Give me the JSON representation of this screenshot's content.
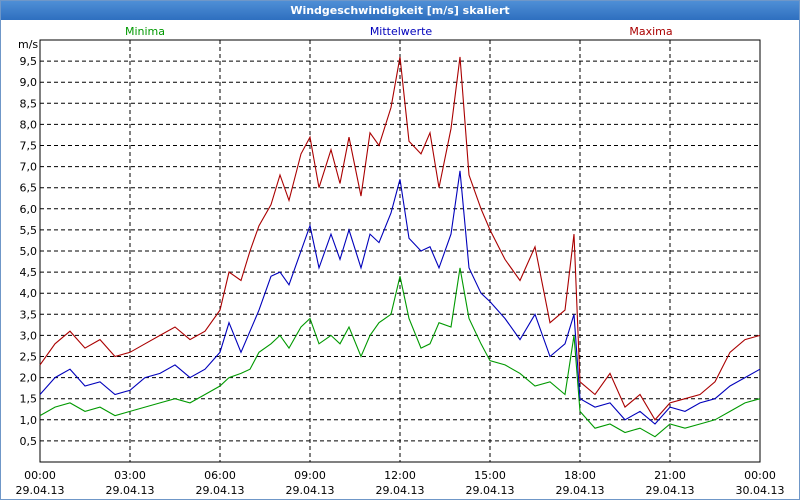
{
  "window": {
    "title": "Windgeschwindigkeit [m/s] skaliert"
  },
  "colors": {
    "minima": "#009900",
    "mittel": "#0000bb",
    "maxima": "#aa0000"
  },
  "chart_data": {
    "type": "line",
    "title": "Windgeschwindigkeit [m/s] skaliert",
    "ylabel": "m/s",
    "xlabel": "",
    "ylim": [
      0,
      10
    ],
    "xlim": [
      "29.04.13 00:00",
      "30.04.13 00:00"
    ],
    "grid": true,
    "legend": "top",
    "y_ticks": [
      "0,5",
      "1,0",
      "1,5",
      "2,0",
      "2,5",
      "3,0",
      "3,5",
      "4,0",
      "4,5",
      "5,0",
      "5,5",
      "6,0",
      "6,5",
      "7,0",
      "7,5",
      "8,0",
      "8,5",
      "9,0",
      "9,5"
    ],
    "y_tick_values": [
      0.5,
      1,
      1.5,
      2,
      2.5,
      3,
      3.5,
      4,
      4.5,
      5,
      5.5,
      6,
      6.5,
      7,
      7.5,
      8,
      8.5,
      9,
      9.5
    ],
    "x_ticks": [
      {
        "hour": 0,
        "time": "00:00",
        "date": "29.04.13"
      },
      {
        "hour": 3,
        "time": "03:00",
        "date": "29.04.13"
      },
      {
        "hour": 6,
        "time": "06:00",
        "date": "29.04.13"
      },
      {
        "hour": 9,
        "time": "09:00",
        "date": "29.04.13"
      },
      {
        "hour": 12,
        "time": "12:00",
        "date": "29.04.13"
      },
      {
        "hour": 15,
        "time": "15:00",
        "date": "29.04.13"
      },
      {
        "hour": 18,
        "time": "18:00",
        "date": "29.04.13"
      },
      {
        "hour": 21,
        "time": "21:00",
        "date": "29.04.13"
      },
      {
        "hour": 24,
        "time": "00:00",
        "date": "30.04.13"
      }
    ],
    "series": [
      {
        "name": "Minima",
        "color": "#009900",
        "points": [
          [
            0,
            1.1
          ],
          [
            0.5,
            1.3
          ],
          [
            1,
            1.4
          ],
          [
            1.5,
            1.2
          ],
          [
            2,
            1.3
          ],
          [
            2.5,
            1.1
          ],
          [
            3,
            1.2
          ],
          [
            3.5,
            1.3
          ],
          [
            4,
            1.4
          ],
          [
            4.5,
            1.5
          ],
          [
            5,
            1.4
          ],
          [
            5.5,
            1.6
          ],
          [
            6,
            1.8
          ],
          [
            6.3,
            2.0
          ],
          [
            6.7,
            2.1
          ],
          [
            7,
            2.2
          ],
          [
            7.3,
            2.6
          ],
          [
            7.7,
            2.8
          ],
          [
            8,
            3.0
          ],
          [
            8.3,
            2.7
          ],
          [
            8.7,
            3.2
          ],
          [
            9,
            3.4
          ],
          [
            9.3,
            2.8
          ],
          [
            9.7,
            3.0
          ],
          [
            10,
            2.8
          ],
          [
            10.3,
            3.2
          ],
          [
            10.7,
            2.5
          ],
          [
            11,
            3.0
          ],
          [
            11.3,
            3.3
          ],
          [
            11.7,
            3.5
          ],
          [
            12,
            4.4
          ],
          [
            12.3,
            3.4
          ],
          [
            12.7,
            2.7
          ],
          [
            13,
            2.8
          ],
          [
            13.3,
            3.3
          ],
          [
            13.7,
            3.2
          ],
          [
            14,
            4.6
          ],
          [
            14.3,
            3.4
          ],
          [
            14.7,
            2.8
          ],
          [
            15,
            2.4
          ],
          [
            15.5,
            2.3
          ],
          [
            16,
            2.1
          ],
          [
            16.5,
            1.8
          ],
          [
            17,
            1.9
          ],
          [
            17.5,
            1.6
          ],
          [
            17.8,
            3.0
          ],
          [
            18,
            1.2
          ],
          [
            18.5,
            0.8
          ],
          [
            19,
            0.9
          ],
          [
            19.5,
            0.7
          ],
          [
            20,
            0.8
          ],
          [
            20.5,
            0.6
          ],
          [
            21,
            0.9
          ],
          [
            21.5,
            0.8
          ],
          [
            22,
            0.9
          ],
          [
            22.5,
            1.0
          ],
          [
            23,
            1.2
          ],
          [
            23.5,
            1.4
          ],
          [
            24,
            1.5
          ]
        ]
      },
      {
        "name": "Mittelwerte",
        "color": "#0000bb",
        "points": [
          [
            0,
            1.6
          ],
          [
            0.5,
            2.0
          ],
          [
            1,
            2.2
          ],
          [
            1.5,
            1.8
          ],
          [
            2,
            1.9
          ],
          [
            2.5,
            1.6
          ],
          [
            3,
            1.7
          ],
          [
            3.5,
            2.0
          ],
          [
            4,
            2.1
          ],
          [
            4.5,
            2.3
          ],
          [
            5,
            2.0
          ],
          [
            5.5,
            2.2
          ],
          [
            6,
            2.6
          ],
          [
            6.3,
            3.3
          ],
          [
            6.7,
            2.6
          ],
          [
            7,
            3.1
          ],
          [
            7.3,
            3.6
          ],
          [
            7.7,
            4.4
          ],
          [
            8,
            4.5
          ],
          [
            8.3,
            4.2
          ],
          [
            8.7,
            5.0
          ],
          [
            9,
            5.6
          ],
          [
            9.3,
            4.6
          ],
          [
            9.7,
            5.4
          ],
          [
            10,
            4.8
          ],
          [
            10.3,
            5.5
          ],
          [
            10.7,
            4.6
          ],
          [
            11,
            5.4
          ],
          [
            11.3,
            5.2
          ],
          [
            11.7,
            5.9
          ],
          [
            12,
            6.7
          ],
          [
            12.3,
            5.3
          ],
          [
            12.7,
            5.0
          ],
          [
            13,
            5.1
          ],
          [
            13.3,
            4.6
          ],
          [
            13.7,
            5.4
          ],
          [
            14,
            6.9
          ],
          [
            14.3,
            4.6
          ],
          [
            14.7,
            4.0
          ],
          [
            15,
            3.8
          ],
          [
            15.5,
            3.4
          ],
          [
            16,
            2.9
          ],
          [
            16.5,
            3.5
          ],
          [
            17,
            2.5
          ],
          [
            17.5,
            2.8
          ],
          [
            17.8,
            3.5
          ],
          [
            18,
            1.5
          ],
          [
            18.5,
            1.3
          ],
          [
            19,
            1.4
          ],
          [
            19.5,
            1.0
          ],
          [
            20,
            1.2
          ],
          [
            20.5,
            0.9
          ],
          [
            21,
            1.3
          ],
          [
            21.5,
            1.2
          ],
          [
            22,
            1.4
          ],
          [
            22.5,
            1.5
          ],
          [
            23,
            1.8
          ],
          [
            23.5,
            2.0
          ],
          [
            24,
            2.2
          ]
        ]
      },
      {
        "name": "Maxima",
        "color": "#aa0000",
        "points": [
          [
            0,
            2.3
          ],
          [
            0.5,
            2.8
          ],
          [
            1,
            3.1
          ],
          [
            1.5,
            2.7
          ],
          [
            2,
            2.9
          ],
          [
            2.5,
            2.5
          ],
          [
            3,
            2.6
          ],
          [
            3.5,
            2.8
          ],
          [
            4,
            3.0
          ],
          [
            4.5,
            3.2
          ],
          [
            5,
            2.9
          ],
          [
            5.5,
            3.1
          ],
          [
            6,
            3.6
          ],
          [
            6.3,
            4.5
          ],
          [
            6.7,
            4.3
          ],
          [
            7,
            5.0
          ],
          [
            7.3,
            5.6
          ],
          [
            7.7,
            6.1
          ],
          [
            8,
            6.8
          ],
          [
            8.3,
            6.2
          ],
          [
            8.7,
            7.3
          ],
          [
            9,
            7.7
          ],
          [
            9.3,
            6.5
          ],
          [
            9.7,
            7.4
          ],
          [
            10,
            6.6
          ],
          [
            10.3,
            7.7
          ],
          [
            10.7,
            6.3
          ],
          [
            11,
            7.8
          ],
          [
            11.3,
            7.5
          ],
          [
            11.7,
            8.4
          ],
          [
            12,
            9.6
          ],
          [
            12.3,
            7.6
          ],
          [
            12.7,
            7.3
          ],
          [
            13,
            7.8
          ],
          [
            13.3,
            6.5
          ],
          [
            13.7,
            7.9
          ],
          [
            14,
            9.6
          ],
          [
            14.3,
            6.8
          ],
          [
            14.7,
            6.0
          ],
          [
            15,
            5.5
          ],
          [
            15.5,
            4.8
          ],
          [
            16,
            4.3
          ],
          [
            16.5,
            5.1
          ],
          [
            17,
            3.3
          ],
          [
            17.5,
            3.6
          ],
          [
            17.8,
            5.4
          ],
          [
            18,
            1.9
          ],
          [
            18.5,
            1.6
          ],
          [
            19,
            2.1
          ],
          [
            19.5,
            1.3
          ],
          [
            20,
            1.6
          ],
          [
            20.5,
            1.0
          ],
          [
            21,
            1.4
          ],
          [
            21.5,
            1.5
          ],
          [
            22,
            1.6
          ],
          [
            22.5,
            1.9
          ],
          [
            23,
            2.6
          ],
          [
            23.5,
            2.9
          ],
          [
            24,
            3.0
          ]
        ]
      }
    ]
  }
}
